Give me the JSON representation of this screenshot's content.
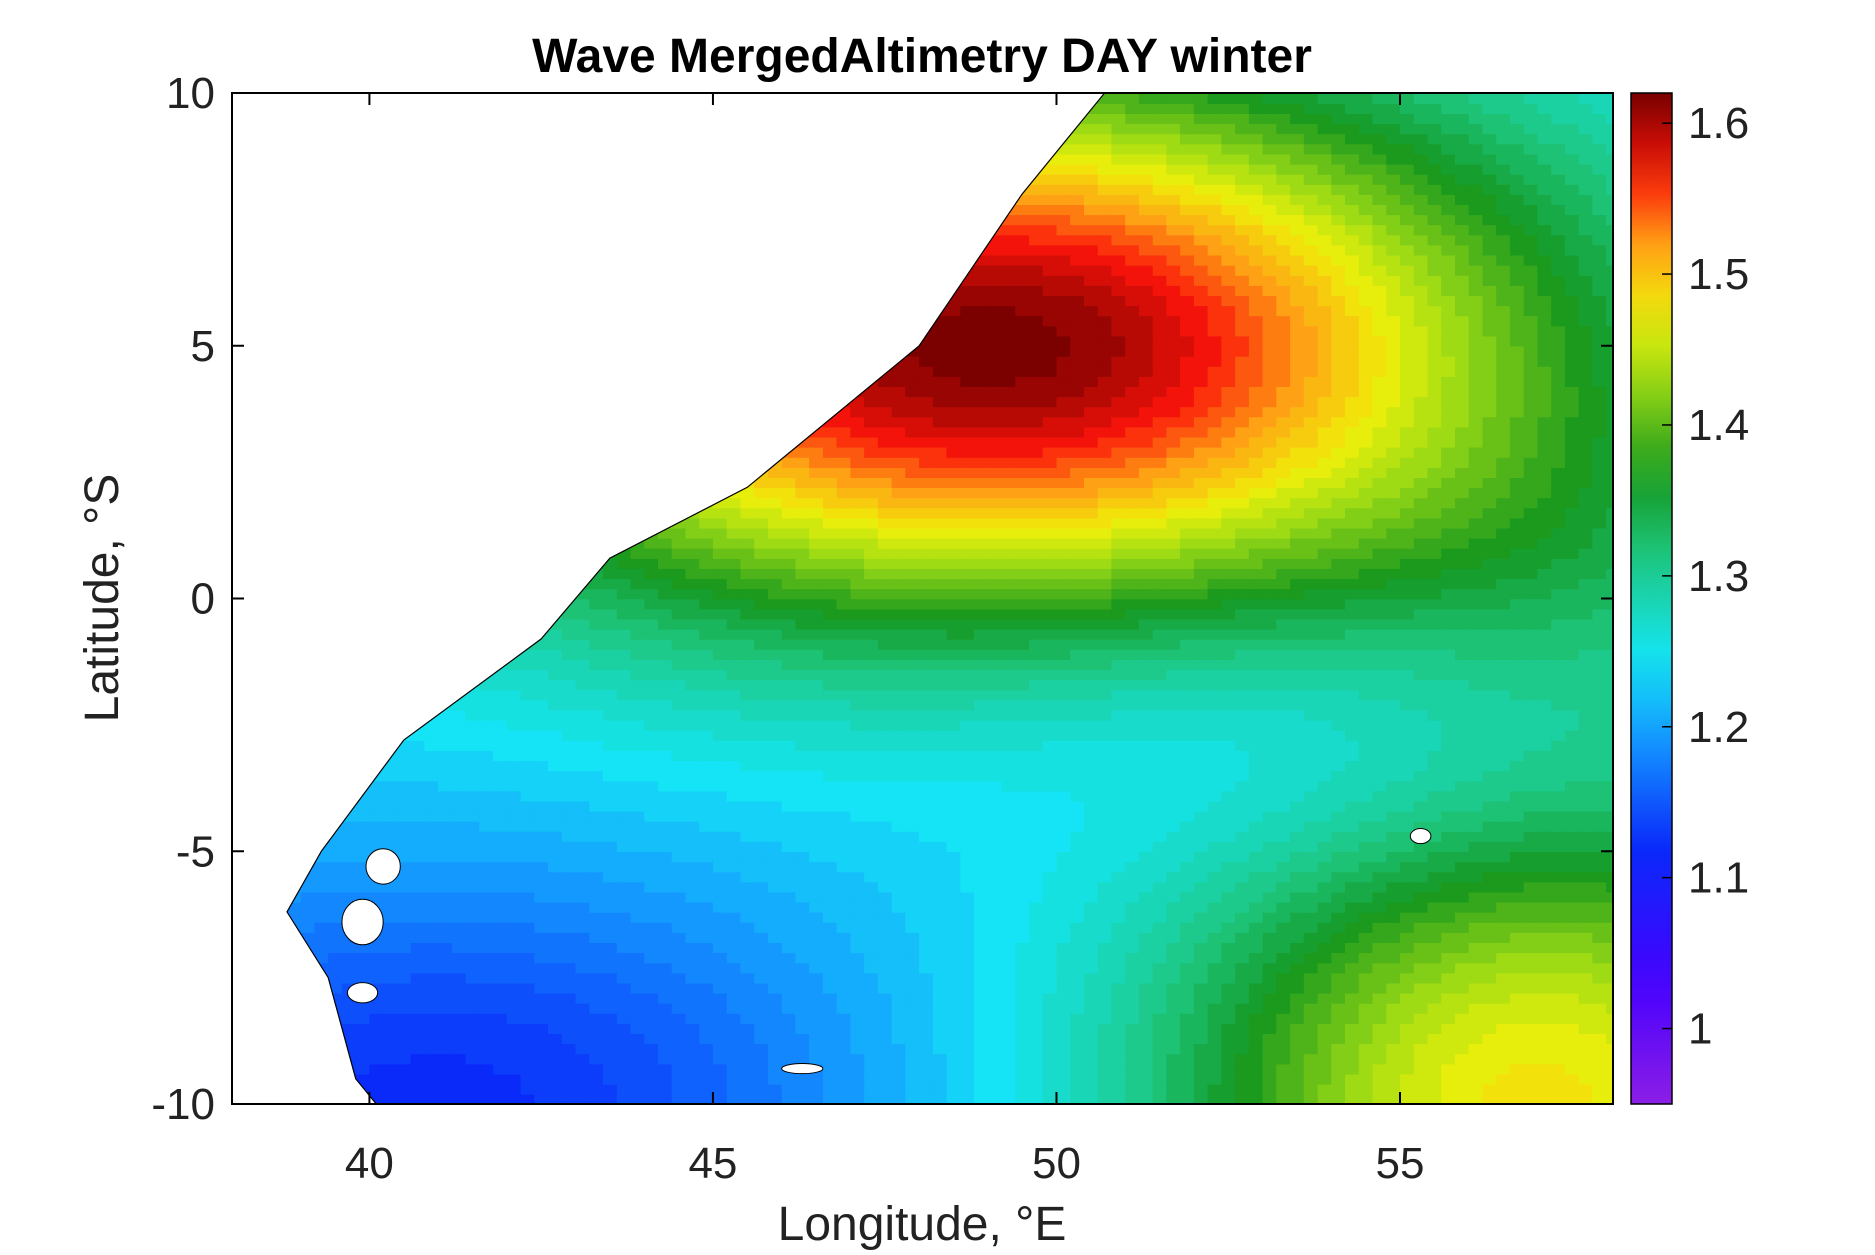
{
  "chart_data": {
    "type": "heatmap",
    "subtype": "filled-contour-map",
    "title": "Wave MergedAltimetry DAY winter",
    "xlabel": "Longitude, °E",
    "ylabel": "Latitude, °S",
    "xlim": [
      38,
      58.1
    ],
    "ylim": [
      -10,
      10
    ],
    "xticks": [
      40,
      45,
      50,
      55
    ],
    "xtick_labels": [
      "40",
      "45",
      "50",
      "55"
    ],
    "yticks": [
      10,
      5,
      0,
      -5,
      -10
    ],
    "ytick_labels": [
      "10",
      "5",
      "0",
      "-5",
      "-10"
    ],
    "grid": false,
    "colorbar": {
      "range": [
        0.95,
        1.62
      ],
      "ticks": [
        1.6,
        1.5,
        1.4,
        1.3,
        1.2,
        1.1,
        1.0
      ],
      "tick_labels": [
        "1.6",
        "1.5",
        "1.4",
        "1.3",
        "1.2",
        "1.1",
        "1"
      ],
      "colormap": "jet-like (violet-blue-cyan-green-yellow-red-dark red)"
    },
    "features": [
      {
        "name": "maximum",
        "lon": 49,
        "lat": 5,
        "value": 1.62
      },
      {
        "name": "local minimum",
        "lon": 54,
        "lat": -3,
        "value": 1.23
      },
      {
        "name": "southwest minimum",
        "lon": 41,
        "lat": -10,
        "value": 1.16
      }
    ],
    "land": {
      "description": "African coastline (white, unfilled)",
      "coast": [
        [
          50.7,
          10
        ],
        [
          49.5,
          8
        ],
        [
          48,
          5
        ],
        [
          45.5,
          2.2
        ],
        [
          43.5,
          0.8
        ],
        [
          42.5,
          -0.8
        ],
        [
          40.5,
          -2.8
        ],
        [
          39.3,
          -5
        ],
        [
          38.8,
          -6.2
        ],
        [
          39.4,
          -7.5
        ],
        [
          39.8,
          -9.5
        ],
        [
          40.1,
          -10
        ]
      ]
    }
  }
}
